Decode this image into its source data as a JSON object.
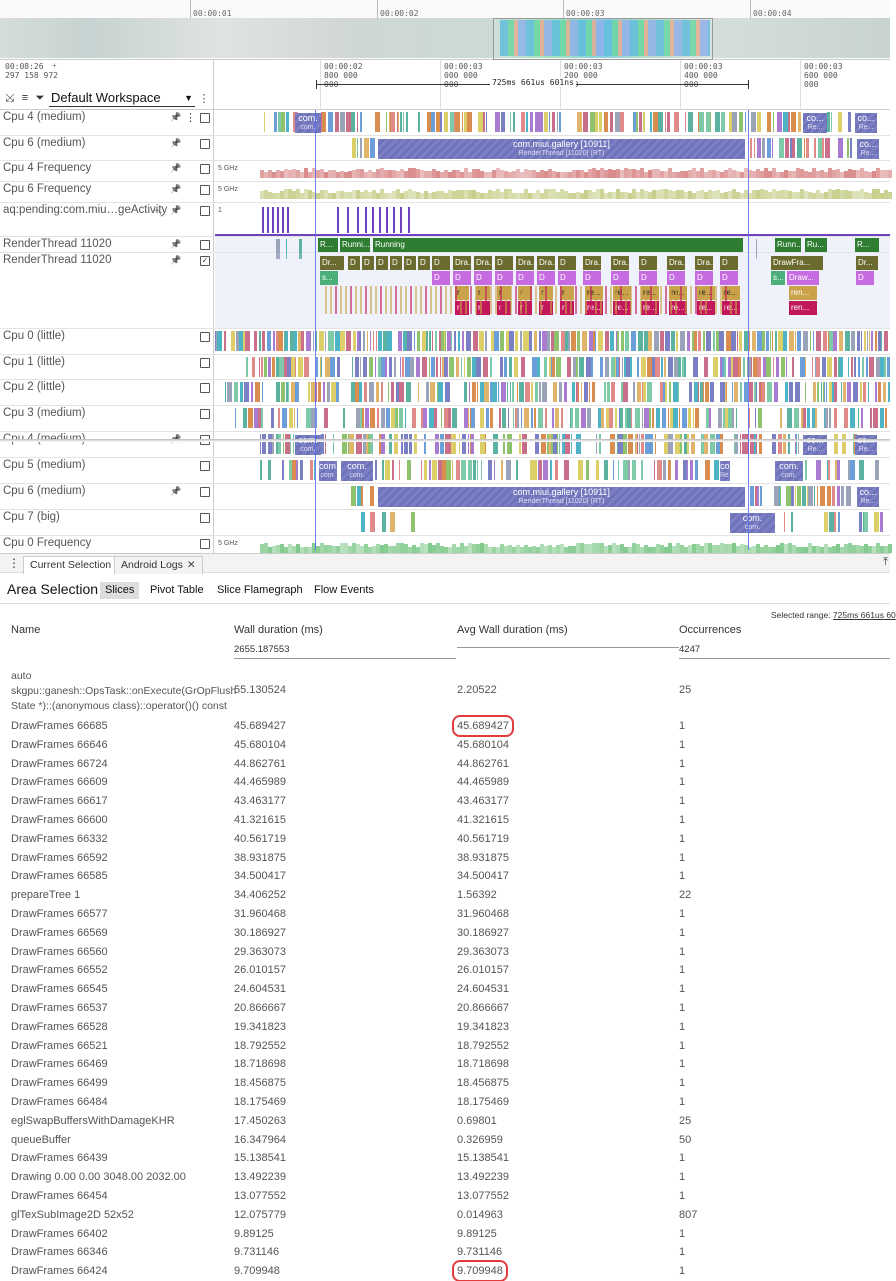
{
  "overview": {
    "ticks": [
      "00:00:01",
      "00:00:02",
      "00:00:03",
      "00:00:04"
    ]
  },
  "time_header": {
    "origin_time": "00:08:26",
    "origin_ns": "297 158 972",
    "plus": "+",
    "ticks": [
      {
        "time": "00:00:02",
        "ns": "800 000 000"
      },
      {
        "time": "00:00:03",
        "ns": "000 000 000"
      },
      {
        "time": "00:00:03",
        "ns": "200 000 000"
      },
      {
        "time": "00:00:03",
        "ns": "400 000 000"
      },
      {
        "time": "00:00:03",
        "ns": "600 000 000"
      }
    ],
    "span_label": "725ms 661us 601ns"
  },
  "workspace": {
    "name": "Default Workspace"
  },
  "tracks": {
    "pinned": [
      {
        "name": "Cpu 4 (medium)"
      },
      {
        "name": "Cpu 6 (medium)"
      },
      {
        "name": "Cpu 4 Frequency"
      },
      {
        "name": "Cpu 6 Frequency"
      },
      {
        "name": "aq:pending:com.miu…geActivity"
      },
      {
        "name": "RenderThread 11020"
      },
      {
        "name": "RenderThread 11020"
      }
    ],
    "scroll": [
      {
        "name": "Cpu 0 (little)"
      },
      {
        "name": "Cpu 1 (little)"
      },
      {
        "name": "Cpu 2 (little)"
      },
      {
        "name": "Cpu 3 (medium)"
      },
      {
        "name": "Cpu 4 (medium)"
      },
      {
        "name": "Cpu 5 (medium)"
      },
      {
        "name": "Cpu 6 (medium)"
      },
      {
        "name": "Cpu 7 (big)"
      },
      {
        "name": "Cpu 0 Frequency"
      }
    ],
    "freq_label": "5 GHz",
    "counter_label": "1",
    "big_slice": {
      "title": "com.miui.gallery [10911]",
      "sub": "RenderThread [11020] (RT)"
    },
    "small_slice": {
      "title": "com.",
      "sub": "com."
    },
    "small_slice_b": {
      "title": "co...",
      "sub": "Re..."
    },
    "rt_running": "Running",
    "rt_runni": "Runni...",
    "rt_r": "R...",
    "rt_run": "Runn...",
    "rt_ru": "Ru...",
    "rt_drawfra": "DrawFra...",
    "rt_draw": "Draw...",
    "rt_ren": "ren...",
    "rt_dr": "Dr...",
    "rt_dra": "Dra...",
    "rt_d": "D",
    "rt_re": "re...",
    "rt_small_r": "r",
    "rt_s": "s...",
    "rt_c": "C",
    "rt_co": "co",
    "rt_com": "com.",
    "rt_ren2": "Rend..."
  },
  "bottom_tabs": [
    {
      "label": "Current Selection",
      "active": true
    },
    {
      "label": "Android Logs",
      "active": false
    }
  ],
  "selection": {
    "title": "Area Selection",
    "subtabs": [
      "Slices",
      "Pivot Table",
      "Slice Flamegraph",
      "Flow Events"
    ],
    "range_label": "Selected range:",
    "range_value": "725ms 661us 60"
  },
  "table": {
    "columns": [
      "Name",
      "Wall duration (ms)",
      "Avg Wall duration (ms)",
      "Occurrences"
    ],
    "totals": {
      "wall": "2655.187553",
      "occ": "4247"
    },
    "rows": [
      {
        "name": "auto\nskgpu::ganesh::OpsTask::onExecute(GrOpFlush\nState *)::(anonymous class)::operator()() const",
        "wall": "55.130524",
        "avg": "2.20522",
        "occ": "25"
      },
      {
        "name": "DrawFrames 66685",
        "wall": "45.689427",
        "avg": "45.689427",
        "occ": "1"
      },
      {
        "name": "DrawFrames 66646",
        "wall": "45.680104",
        "avg": "45.680104",
        "occ": "1"
      },
      {
        "name": "DrawFrames 66724",
        "wall": "44.862761",
        "avg": "44.862761",
        "occ": "1"
      },
      {
        "name": "DrawFrames 66609",
        "wall": "44.465989",
        "avg": "44.465989",
        "occ": "1"
      },
      {
        "name": "DrawFrames 66617",
        "wall": "43.463177",
        "avg": "43.463177",
        "occ": "1"
      },
      {
        "name": "DrawFrames 66600",
        "wall": "41.321615",
        "avg": "41.321615",
        "occ": "1"
      },
      {
        "name": "DrawFrames 66332",
        "wall": "40.561719",
        "avg": "40.561719",
        "occ": "1"
      },
      {
        "name": "DrawFrames 66592",
        "wall": "38.931875",
        "avg": "38.931875",
        "occ": "1"
      },
      {
        "name": "DrawFrames 66585",
        "wall": "34.500417",
        "avg": "34.500417",
        "occ": "1"
      },
      {
        "name": "prepareTree 1",
        "wall": "34.406252",
        "avg": "1.56392",
        "occ": "22"
      },
      {
        "name": "DrawFrames 66577",
        "wall": "31.960468",
        "avg": "31.960468",
        "occ": "1"
      },
      {
        "name": "DrawFrames 66569",
        "wall": "30.186927",
        "avg": "30.186927",
        "occ": "1"
      },
      {
        "name": "DrawFrames 66560",
        "wall": "29.363073",
        "avg": "29.363073",
        "occ": "1"
      },
      {
        "name": "DrawFrames 66552",
        "wall": "26.010157",
        "avg": "26.010157",
        "occ": "1"
      },
      {
        "name": "DrawFrames 66545",
        "wall": "24.604531",
        "avg": "24.604531",
        "occ": "1"
      },
      {
        "name": "DrawFrames 66537",
        "wall": "20.866667",
        "avg": "20.866667",
        "occ": "1"
      },
      {
        "name": "DrawFrames 66528",
        "wall": "19.341823",
        "avg": "19.341823",
        "occ": "1"
      },
      {
        "name": "DrawFrames 66521",
        "wall": "18.792552",
        "avg": "18.792552",
        "occ": "1"
      },
      {
        "name": "DrawFrames 66469",
        "wall": "18.718698",
        "avg": "18.718698",
        "occ": "1"
      },
      {
        "name": "DrawFrames 66499",
        "wall": "18.456875",
        "avg": "18.456875",
        "occ": "1"
      },
      {
        "name": "DrawFrames 66484",
        "wall": "18.175469",
        "avg": "18.175469",
        "occ": "1"
      },
      {
        "name": "eglSwapBuffersWithDamageKHR",
        "wall": "17.450263",
        "avg": "0.69801",
        "occ": "25"
      },
      {
        "name": "queueBuffer",
        "wall": "16.347964",
        "avg": "0.326959",
        "occ": "50"
      },
      {
        "name": "DrawFrames 66439",
        "wall": "15.138541",
        "avg": "15.138541",
        "occ": "1"
      },
      {
        "name": "Drawing 0.00 0.00 3048.00 2032.00",
        "wall": "13.492239",
        "avg": "13.492239",
        "occ": "1"
      },
      {
        "name": "DrawFrames 66454",
        "wall": "13.077552",
        "avg": "13.077552",
        "occ": "1"
      },
      {
        "name": "glTexSubImage2D 52x52",
        "wall": "12.075779",
        "avg": "0.014963",
        "occ": "807"
      },
      {
        "name": "DrawFrames 66402",
        "wall": "9.89125",
        "avg": "9.89125",
        "occ": "1"
      },
      {
        "name": "DrawFrames 66346",
        "wall": "9.731146",
        "avg": "9.731146",
        "occ": "1"
      },
      {
        "name": "DrawFrames 66424",
        "wall": "9.709948",
        "avg": "9.709948",
        "occ": "1"
      }
    ],
    "highlighted_avg_rows": [
      1,
      30
    ]
  },
  "colors": {
    "cpu_slice": "#7b7fc4",
    "render_green": "#2e7d32",
    "highlight": "#e23c3c",
    "cursor": "#5b6cf0",
    "freq": "#d98a8a",
    "freq2": "#c8cf8c"
  }
}
